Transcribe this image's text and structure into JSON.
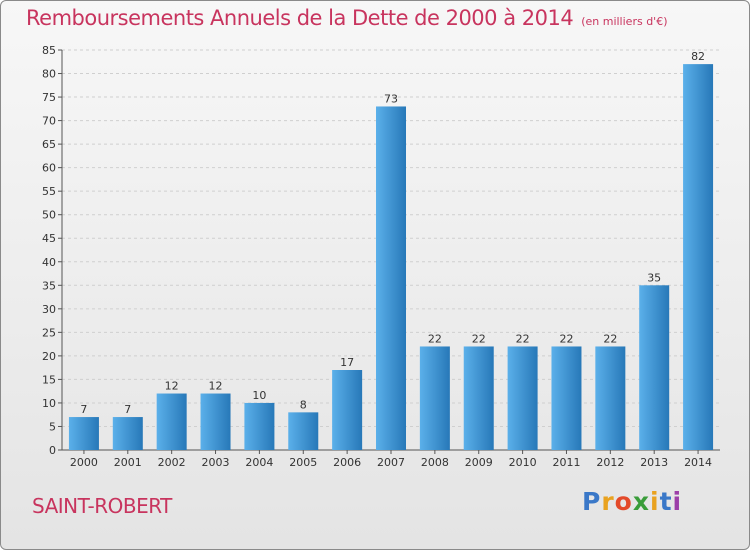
{
  "header": {
    "title": "Remboursements Annuels de la Dette de 2000 à 2014",
    "subtitle": "(en milliers d'€)"
  },
  "footer": {
    "commune": "SAINT-ROBERT",
    "logo_letters": [
      "P",
      "r",
      "o",
      "x",
      "i",
      "t",
      "i"
    ],
    "logo_colors": [
      "#3a78c8",
      "#e9a21f",
      "#e34a2a",
      "#3a9d3a",
      "#e9a21f",
      "#3a78c8",
      "#9c3fa8"
    ]
  },
  "colors": {
    "bar_light": "#5bb0ea",
    "bar_dark": "#2778b8",
    "title": "#c8345e"
  },
  "chart_data": {
    "type": "bar",
    "title": "Remboursements Annuels de la Dette de 2000 à 2014",
    "subtitle": "(en milliers d'€)",
    "categories": [
      "2000",
      "2001",
      "2002",
      "2003",
      "2004",
      "2005",
      "2006",
      "2007",
      "2008",
      "2009",
      "2010",
      "2011",
      "2012",
      "2013",
      "2014"
    ],
    "values": [
      7,
      7,
      12,
      12,
      10,
      8,
      17,
      73,
      22,
      22,
      22,
      22,
      22,
      35,
      82
    ],
    "ylim": [
      0,
      85
    ],
    "yticks": [
      0,
      5,
      10,
      15,
      20,
      25,
      30,
      35,
      40,
      45,
      50,
      55,
      60,
      65,
      70,
      75,
      80,
      85
    ],
    "grid": true,
    "xlabel": "",
    "ylabel": ""
  }
}
